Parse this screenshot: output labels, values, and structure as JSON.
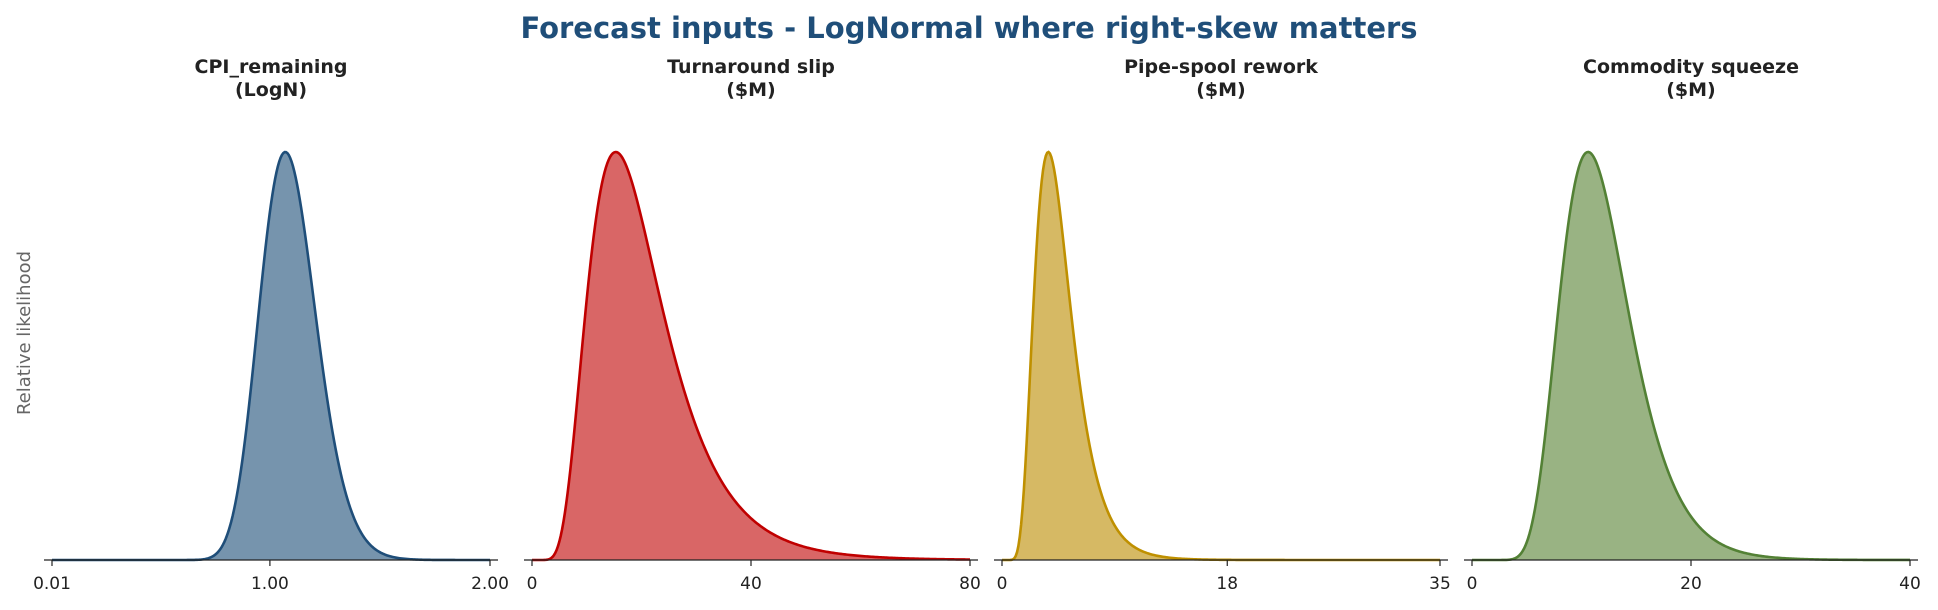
{
  "figure": {
    "title": "Forecast inputs - LogNormal where right-skew matters",
    "title_color": "#1f4e79",
    "ylabel": "Relative likelihood"
  },
  "chart_data": [
    {
      "type": "area",
      "title_line1": "CPI_remaining",
      "title_line2": "(LogN)",
      "distribution": "lognormal",
      "mode": 1.07,
      "sigma": 0.12,
      "xlim": [
        0.01,
        2.0
      ],
      "xticks": [
        "0.01",
        "1.00",
        "2.00"
      ],
      "xtick_values": [
        0.01,
        1.0,
        2.0
      ],
      "ylabel": "Relative likelihood",
      "line_color": "#1f4e79",
      "fill_color": "#7694ad"
    },
    {
      "type": "area",
      "title_line1": "Turnaround slip",
      "title_line2": "($M)",
      "distribution": "lognormal",
      "mode": 15.3,
      "sigma": 0.45,
      "xlim": [
        0,
        80
      ],
      "xticks": [
        "0",
        "40",
        "80"
      ],
      "xtick_values": [
        0,
        40,
        80
      ],
      "line_color": "#c00000",
      "fill_color": "#d96666"
    },
    {
      "type": "area",
      "title_line1": "Pipe-spool rework",
      "title_line2": "($M)",
      "distribution": "lognormal",
      "mode": 3.7,
      "sigma": 0.4,
      "xlim": [
        0,
        35
      ],
      "xticks": [
        "0",
        "18",
        "35"
      ],
      "xtick_values": [
        0,
        18,
        35
      ],
      "line_color": "#bf9000",
      "fill_color": "#d6b964"
    },
    {
      "type": "area",
      "title_line1": "Commodity squeeze",
      "title_line2": "($M)",
      "distribution": "lognormal",
      "mode": 10.6,
      "sigma": 0.3,
      "xlim": [
        0,
        40
      ],
      "xticks": [
        "0",
        "20",
        "40"
      ],
      "xtick_values": [
        0,
        20,
        40
      ],
      "line_color": "#538135",
      "fill_color": "#99b383"
    }
  ]
}
